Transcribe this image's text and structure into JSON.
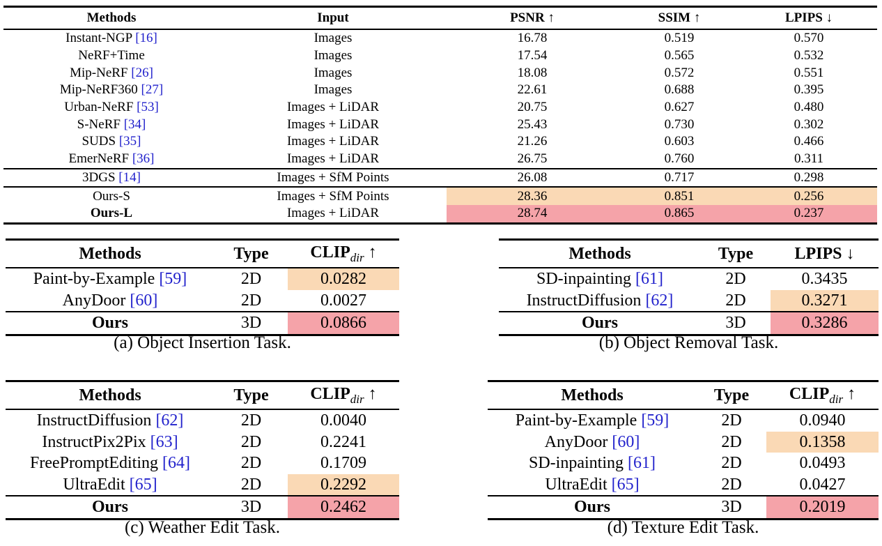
{
  "main_table": {
    "headers": {
      "methods": "Methods",
      "input": "Input",
      "psnr": "PSNR ↑",
      "ssim": "SSIM ↑",
      "lpips": "LPIPS ↓"
    },
    "rows": [
      {
        "method": "Instant-NGP ",
        "ref": "[16]",
        "input": "Images",
        "psnr": "16.78",
        "ssim": "0.519",
        "lpips": "0.570"
      },
      {
        "method": "NeRF+Time",
        "ref": "",
        "input": "Images",
        "psnr": "17.54",
        "ssim": "0.565",
        "lpips": "0.532"
      },
      {
        "method": "Mip-NeRF ",
        "ref": "[26]",
        "input": "Images",
        "psnr": "18.08",
        "ssim": "0.572",
        "lpips": "0.551"
      },
      {
        "method": "Mip-NeRF360 ",
        "ref": "[27]",
        "input": "Images",
        "psnr": "22.61",
        "ssim": "0.688",
        "lpips": "0.395"
      },
      {
        "method": "Urban-NeRF ",
        "ref": "[53]",
        "input": "Images + LiDAR",
        "psnr": "20.75",
        "ssim": "0.627",
        "lpips": "0.480"
      },
      {
        "method": "S-NeRF ",
        "ref": "[34]",
        "input": "Images + LiDAR",
        "psnr": "25.43",
        "ssim": "0.730",
        "lpips": "0.302"
      },
      {
        "method": "SUDS ",
        "ref": "[35]",
        "input": "Images + LiDAR",
        "psnr": "21.26",
        "ssim": "0.603",
        "lpips": "0.466"
      },
      {
        "method": "EmerNeRF ",
        "ref": "[36]",
        "input": "Images + LiDAR",
        "psnr": "26.75",
        "ssim": "0.760",
        "lpips": "0.311"
      },
      {
        "method": "3DGS ",
        "ref": "[14]",
        "input": "Images + SfM Points",
        "psnr": "26.08",
        "ssim": "0.717",
        "lpips": "0.298"
      },
      {
        "method": "Ours-S",
        "ref": "",
        "input": "Images + SfM Points",
        "psnr": "28.36",
        "ssim": "0.851",
        "lpips": "0.256"
      },
      {
        "method": "Ours-L",
        "ref": "",
        "input": "Images + LiDAR",
        "psnr": "28.74",
        "ssim": "0.865",
        "lpips": "0.237"
      }
    ]
  },
  "table_a": {
    "headers": {
      "methods": "Methods",
      "type": "Type",
      "metric": "CLIP",
      "metric_sub": "dir",
      "metric_arrow": " ↑"
    },
    "rows": [
      {
        "method": "Paint-by-Example ",
        "ref": "[59]",
        "type": "2D",
        "value": "0.0282"
      },
      {
        "method": "AnyDoor ",
        "ref": "[60]",
        "type": "2D",
        "value": "0.0027"
      },
      {
        "method": "Ours",
        "ref": "",
        "type": "3D",
        "value": "0.0866"
      }
    ],
    "caption": "(a) Object Insertion Task."
  },
  "table_b": {
    "headers": {
      "methods": "Methods",
      "type": "Type",
      "metric": "LPIPS ↓"
    },
    "rows": [
      {
        "method": "SD-inpainting ",
        "ref": "[61]",
        "type": "2D",
        "value": "0.3435"
      },
      {
        "method": "InstructDiffusion ",
        "ref": "[62]",
        "type": "2D",
        "value": "0.3271"
      },
      {
        "method": "Ours",
        "ref": "",
        "type": "3D",
        "value": "0.3286"
      }
    ],
    "caption": "(b) Object Removal Task."
  },
  "table_c": {
    "headers": {
      "methods": "Methods",
      "type": "Type",
      "metric": "CLIP",
      "metric_sub": "dir",
      "metric_arrow": " ↑"
    },
    "rows": [
      {
        "method": "InstructDiffusion ",
        "ref": "[62]",
        "type": "2D",
        "value": "0.0040"
      },
      {
        "method": "InstructPix2Pix ",
        "ref": "[63]",
        "type": "2D",
        "value": "0.2241"
      },
      {
        "method": "FreePromptEditing ",
        "ref": "[64]",
        "type": "2D",
        "value": "0.1709"
      },
      {
        "method": "UltraEdit ",
        "ref": "[65]",
        "type": "2D",
        "value": "0.2292"
      },
      {
        "method": "Ours",
        "ref": "",
        "type": "3D",
        "value": "0.2462"
      }
    ],
    "caption": "(c) Weather Edit Task."
  },
  "table_d": {
    "headers": {
      "methods": "Methods",
      "type": "Type",
      "metric": "CLIP",
      "metric_sub": "dir",
      "metric_arrow": " ↑"
    },
    "rows": [
      {
        "method": "Paint-by-Example ",
        "ref": "[59]",
        "type": "2D",
        "value": "0.0940"
      },
      {
        "method": "AnyDoor ",
        "ref": "[60]",
        "type": "2D",
        "value": "0.1358"
      },
      {
        "method": "SD-inpainting ",
        "ref": "[61]",
        "type": "2D",
        "value": "0.0493"
      },
      {
        "method": "UltraEdit ",
        "ref": "[65]",
        "type": "2D",
        "value": "0.0427"
      },
      {
        "method": "Ours",
        "ref": "",
        "type": "3D",
        "value": "0.2019"
      }
    ],
    "caption": "(d) Texture Edit Task."
  },
  "colors": {
    "second_best": "#fad9b5",
    "best": "#f5a3a9",
    "citation": "#2222cc"
  }
}
